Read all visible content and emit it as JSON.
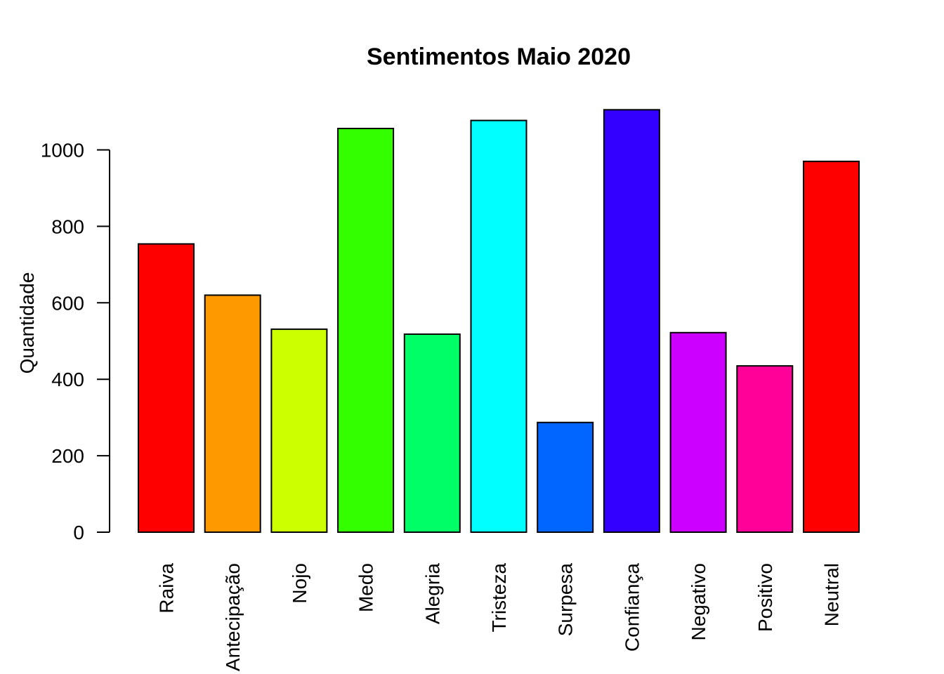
{
  "chart_data": {
    "type": "bar",
    "title": "Sentimentos Maio 2020",
    "xlabel": "",
    "ylabel": "Quantidade",
    "categories": [
      "Raiva",
      "Antecipação",
      "Nojo",
      "Medo",
      "Alegria",
      "Tristeza",
      "Surpesa",
      "Confiança",
      "Negativo",
      "Positivo",
      "Neutral"
    ],
    "values": [
      754,
      620,
      531,
      1056,
      518,
      1077,
      287,
      1105,
      522,
      435,
      970
    ],
    "colors": [
      "#FF0000",
      "#FF9900",
      "#CCFF00",
      "#33FF00",
      "#00FF66",
      "#00FFFF",
      "#0066FF",
      "#3300FF",
      "#CC00FF",
      "#FF0099",
      "#FF0000"
    ],
    "yticks": [
      0,
      200,
      400,
      600,
      800,
      1000
    ],
    "ylim": [
      0,
      1105
    ],
    "grid": false,
    "legend": "none"
  }
}
